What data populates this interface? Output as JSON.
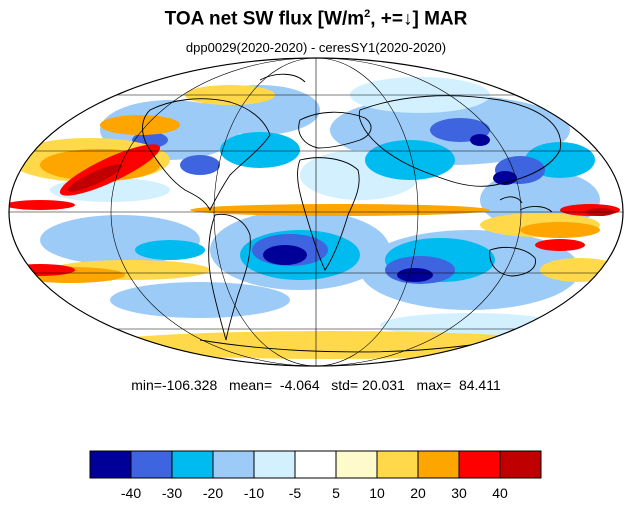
{
  "title": {
    "prefix": "TOA net SW flux [W/m",
    "superscript": "2",
    "suffix": ", +=↓]  MAR"
  },
  "subtitle": "dpp0029(2020-2020) - ceresSY1(2020-2020)",
  "stats": {
    "min_label": "min=",
    "min": "-106.328",
    "mean_label": "mean=",
    "mean": "-4.064",
    "std_label": "std=",
    "std": "20.031",
    "max_label": "max=",
    "max": "84.411"
  },
  "colorbar": {
    "colors": [
      "#000099",
      "#3e64e0",
      "#00bbf0",
      "#9ccbf7",
      "#d2f0ff",
      "#ffffff",
      "#fffacc",
      "#ffd94a",
      "#ffa500",
      "#ff0000",
      "#c00000"
    ],
    "tick_labels": [
      "-40",
      "-30",
      "-20",
      "-10",
      "-5",
      "5",
      "10",
      "20",
      "30",
      "40"
    ]
  },
  "map": {
    "projection": "mollweide",
    "ocean_base": "#ffffff",
    "coastline_color": "#000000",
    "graticule_color": "#000000"
  }
}
